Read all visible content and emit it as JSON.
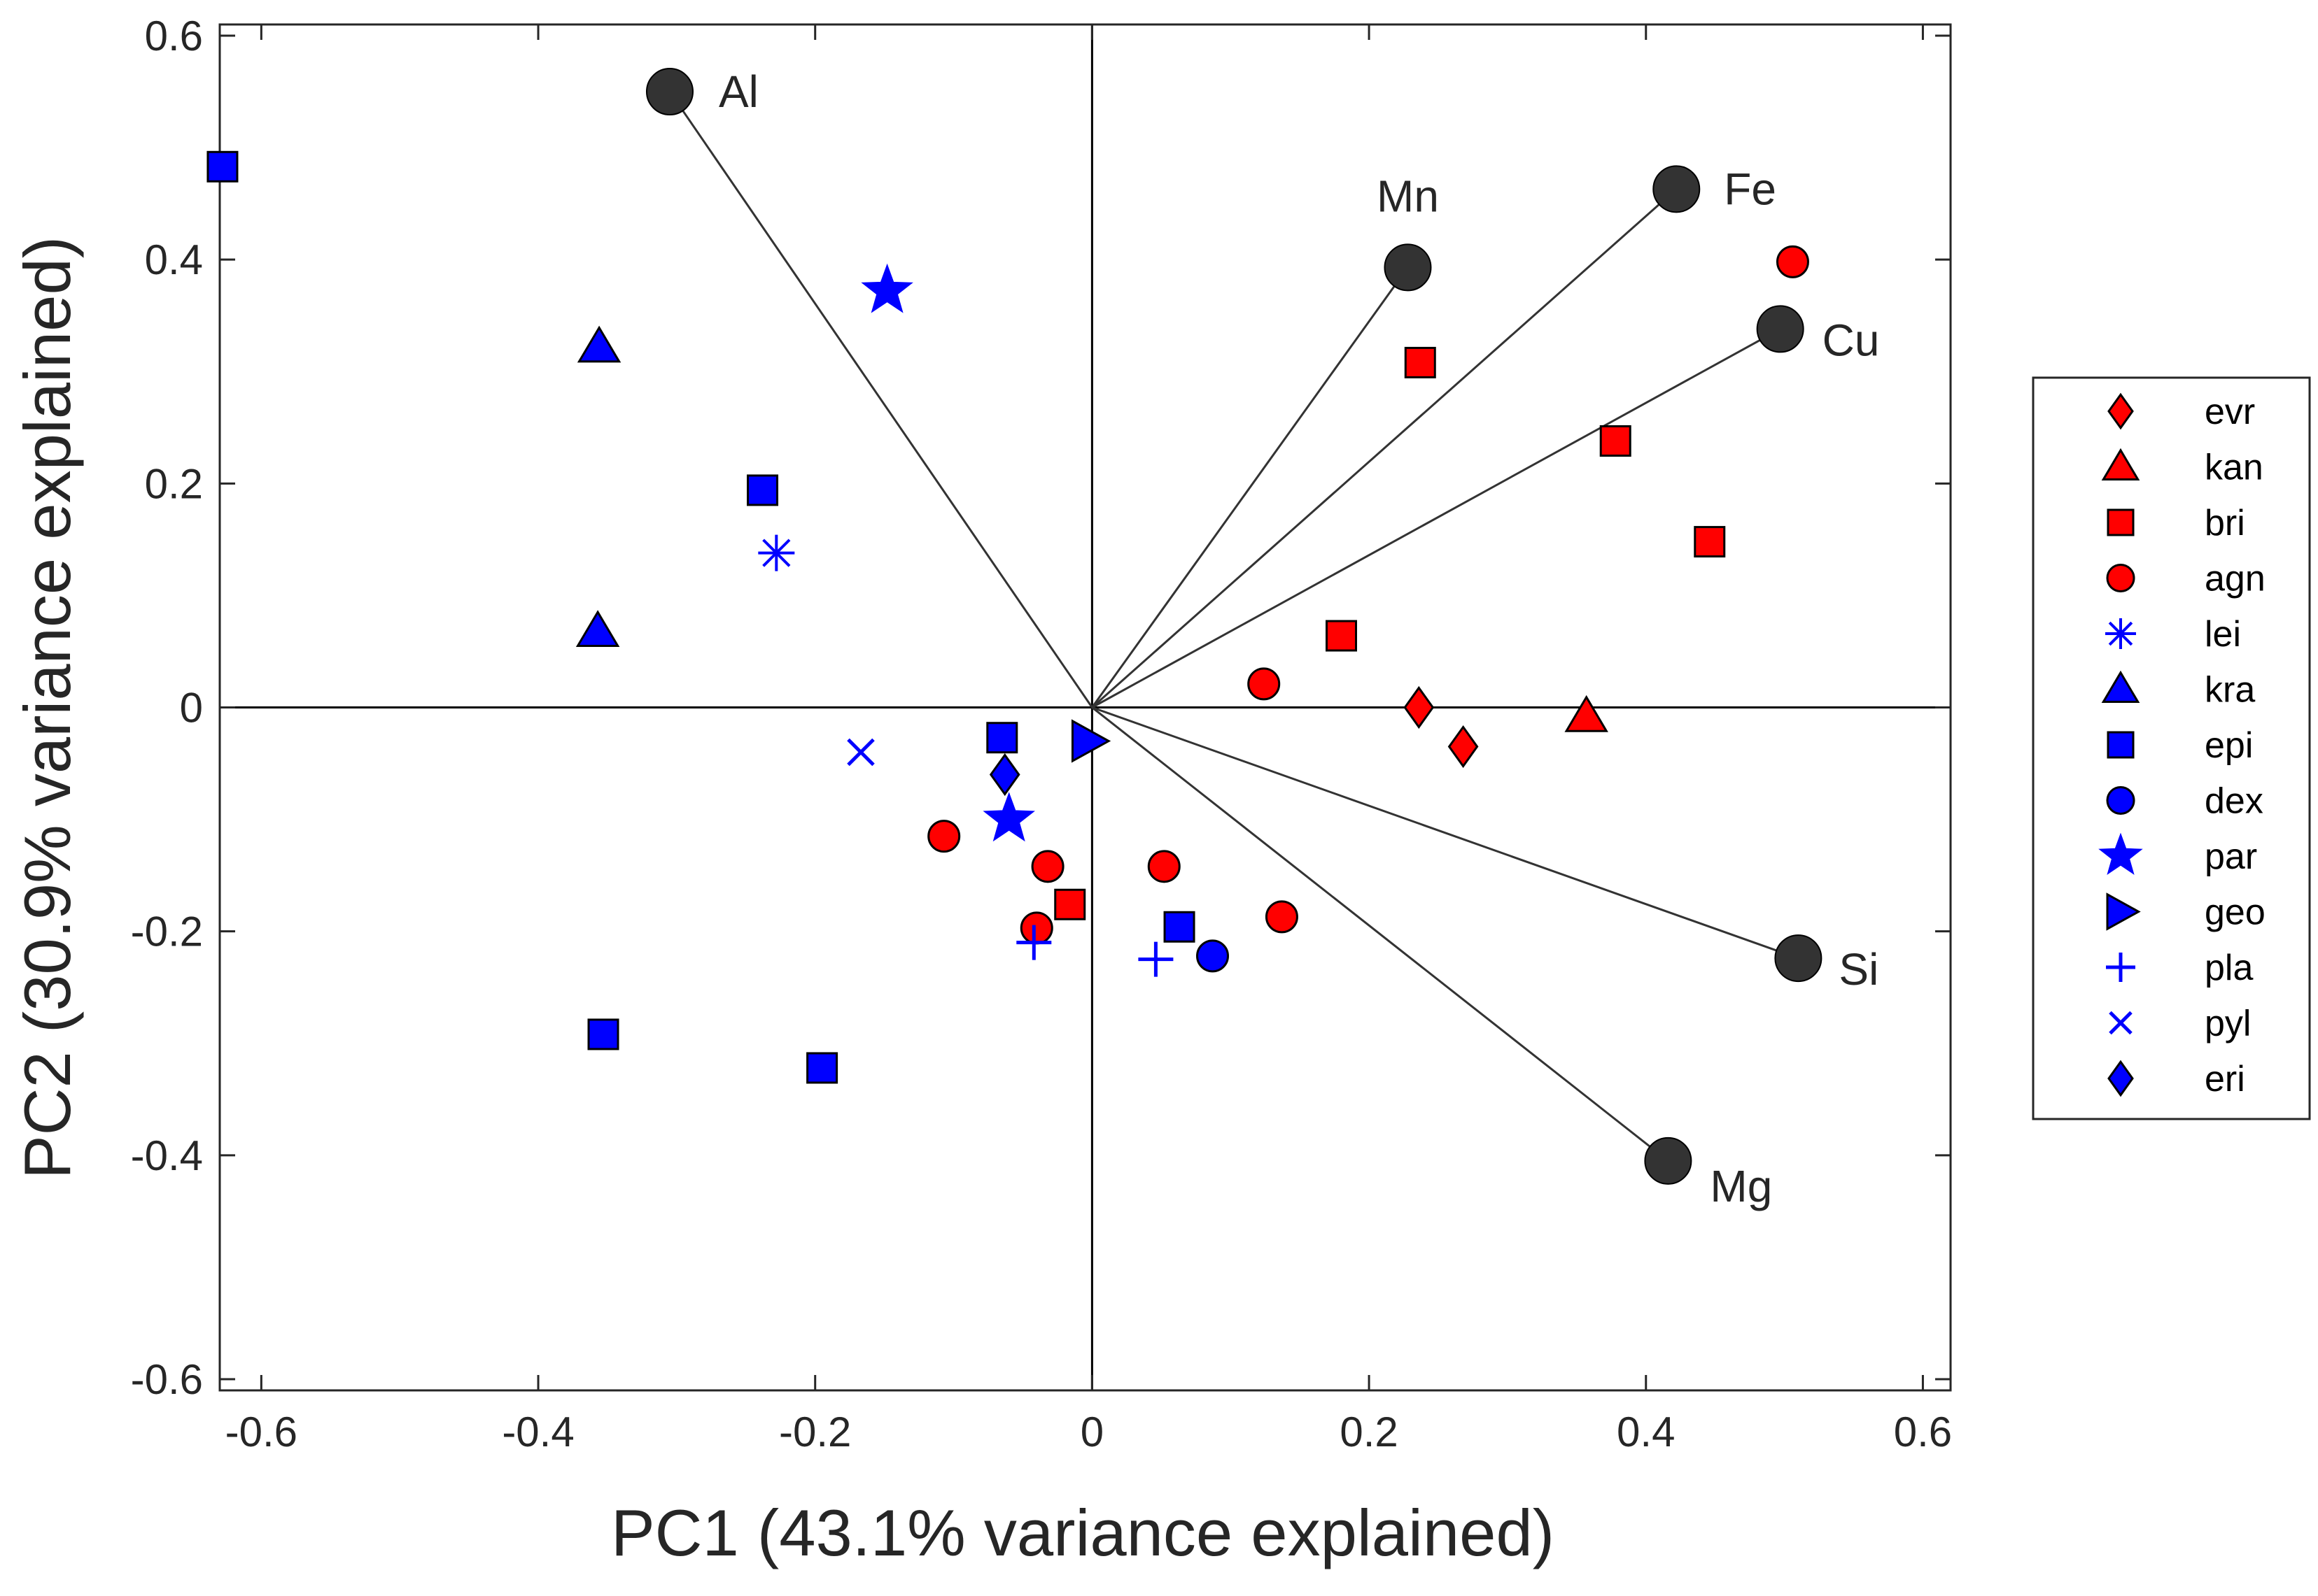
{
  "chart_data": {
    "type": "scatter",
    "subtype": "pca-biplot",
    "xlabel": "PC1 (43.1% variance explained)",
    "ylabel": "PC2 (30.9% variance explained)",
    "xlim": [
      -0.63,
      0.62
    ],
    "ylim": [
      -0.61,
      0.61
    ],
    "xticks": [
      -0.6,
      -0.4,
      -0.2,
      0,
      0.2,
      0.4,
      0.6
    ],
    "xtick_labels": [
      "-0.6",
      "-0.4",
      "-0.2",
      "0",
      "0.2",
      "0.4",
      "0.6"
    ],
    "yticks": [
      -0.6,
      -0.4,
      -0.2,
      0,
      0.2,
      0.4,
      0.6
    ],
    "ytick_labels": [
      "-0.6",
      "-0.4",
      "-0.2",
      "0",
      "0.2",
      "0.4",
      "0.6"
    ],
    "grid": false,
    "legend_position": "right",
    "loading_color": "#333333",
    "loadings": [
      {
        "label": "Al",
        "x": -0.305,
        "y": 0.55
      },
      {
        "label": "Mn",
        "x": 0.228,
        "y": 0.393
      },
      {
        "label": "Fe",
        "x": 0.422,
        "y": 0.463
      },
      {
        "label": "Cu",
        "x": 0.497,
        "y": 0.338
      },
      {
        "label": "Si",
        "x": 0.51,
        "y": -0.224
      },
      {
        "label": "Mg",
        "x": 0.416,
        "y": -0.405
      }
    ],
    "series": [
      {
        "name": "evr",
        "marker": "diamond",
        "color": "#ff0000",
        "points": [
          [
            0.236,
            0.0
          ],
          [
            0.268,
            -0.035
          ]
        ]
      },
      {
        "name": "kan",
        "marker": "triangle",
        "color": "#ff0000",
        "points": [
          [
            0.357,
            -0.008
          ]
        ]
      },
      {
        "name": "bri",
        "marker": "square",
        "color": "#ff0000",
        "points": [
          [
            0.237,
            0.308
          ],
          [
            0.378,
            0.238
          ],
          [
            0.446,
            0.148
          ],
          [
            0.18,
            0.064
          ],
          [
            -0.016,
            -0.176
          ]
        ]
      },
      {
        "name": "agn",
        "marker": "circle",
        "color": "#ff0000",
        "points": [
          [
            0.506,
            0.398
          ],
          [
            0.124,
            0.021
          ],
          [
            -0.107,
            -0.115
          ],
          [
            -0.032,
            -0.142
          ],
          [
            0.052,
            -0.142
          ],
          [
            0.137,
            -0.187
          ],
          [
            -0.04,
            -0.197
          ]
        ]
      },
      {
        "name": "lei",
        "marker": "asterisk",
        "color": "#0000ff",
        "points": [
          [
            -0.228,
            0.138
          ]
        ]
      },
      {
        "name": "kra",
        "marker": "triangle",
        "color": "#0000ff",
        "points": [
          [
            -0.356,
            0.322
          ],
          [
            -0.357,
            0.068
          ]
        ]
      },
      {
        "name": "epi",
        "marker": "square",
        "color": "#0000ff",
        "points": [
          [
            -0.628,
            0.483
          ],
          [
            -0.238,
            0.194
          ],
          [
            -0.065,
            -0.027
          ],
          [
            0.063,
            -0.196
          ],
          [
            -0.353,
            -0.292
          ],
          [
            -0.195,
            -0.322
          ]
        ]
      },
      {
        "name": "dex",
        "marker": "circle",
        "color": "#0000ff",
        "points": [
          [
            0.087,
            -0.222
          ]
        ]
      },
      {
        "name": "par",
        "marker": "star",
        "color": "#0000ff",
        "points": [
          [
            -0.148,
            0.372
          ],
          [
            -0.06,
            -0.1
          ]
        ]
      },
      {
        "name": "geo",
        "marker": "triangle-right",
        "color": "#0000ff",
        "points": [
          [
            -0.003,
            -0.03
          ]
        ]
      },
      {
        "name": "pla",
        "marker": "plus",
        "color": "#0000ff",
        "points": [
          [
            -0.042,
            -0.21
          ],
          [
            0.046,
            -0.225
          ]
        ]
      },
      {
        "name": "pyl",
        "marker": "x",
        "color": "#0000ff",
        "points": [
          [
            -0.167,
            -0.04
          ]
        ]
      },
      {
        "name": "eri",
        "marker": "diamond",
        "color": "#0000ff",
        "points": [
          [
            -0.063,
            -0.06
          ]
        ]
      }
    ]
  }
}
